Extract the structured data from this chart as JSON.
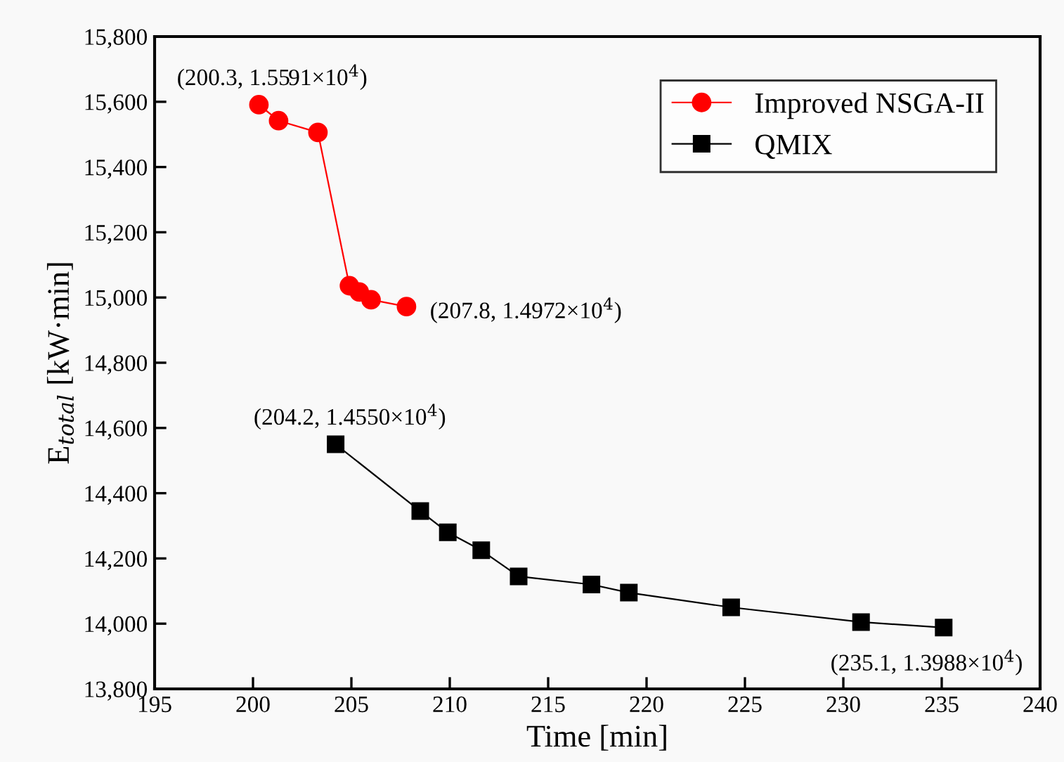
{
  "chart_data": {
    "type": "line",
    "xlabel": "Time [min]",
    "ylabel": "E$_{total}$ [kW·min]",
    "xlim": [
      195,
      240
    ],
    "xticks": [
      195,
      200,
      205,
      210,
      215,
      220,
      225,
      230,
      235,
      240
    ],
    "ylim": [
      13800,
      15800
    ],
    "yticks": [
      {
        "value": 13800,
        "label": "13,800"
      },
      {
        "value": 14000,
        "label": "14,000"
      },
      {
        "value": 14200,
        "label": "14,200"
      },
      {
        "value": 14400,
        "label": "14,400"
      },
      {
        "value": 14600,
        "label": "14,600"
      },
      {
        "value": 14800,
        "label": "14,800"
      },
      {
        "value": 15000,
        "label": "15,000"
      },
      {
        "value": 15200,
        "label": "15,200"
      },
      {
        "value": 15400,
        "label": "15,400"
      },
      {
        "value": 15600,
        "label": "15,600"
      },
      {
        "value": 15800,
        "label": "15,800"
      }
    ],
    "grid": false,
    "legend": "top right",
    "line_style": "solid",
    "series": [
      {
        "name": "Improved NSGA-II",
        "color": "#ff0000",
        "marker": "circle",
        "x": [
          200.3,
          201.3,
          203.3,
          204.9,
          205.4,
          206.0,
          207.8
        ],
        "values": [
          15591,
          15542,
          15506,
          15036,
          15017,
          14993,
          14972
        ]
      },
      {
        "name": "QMIX",
        "color": "#000000",
        "marker": "square",
        "x": [
          204.2,
          208.5,
          209.9,
          211.6,
          213.5,
          217.2,
          219.1,
          224.3,
          230.9,
          235.1
        ],
        "values": [
          14550,
          14345,
          14280,
          14225,
          14145,
          14120,
          14095,
          14050,
          14005,
          13988
        ]
      }
    ],
    "annotations": [
      {
        "text": "(200.3, 1.5591×10$^{4}$)",
        "x": 200.3,
        "y": 15591
      },
      {
        "text": "(207.8, 1.4972×10$^{4}$)",
        "x": 207.8,
        "y": 14972
      },
      {
        "text": "(204.2, 1.4550×10$^{4}$)",
        "x": 204.2,
        "y": 14550
      },
      {
        "text": "(235.1, 1.3988×10$^{4}$)",
        "x": 235.1,
        "y": 13988
      }
    ]
  }
}
